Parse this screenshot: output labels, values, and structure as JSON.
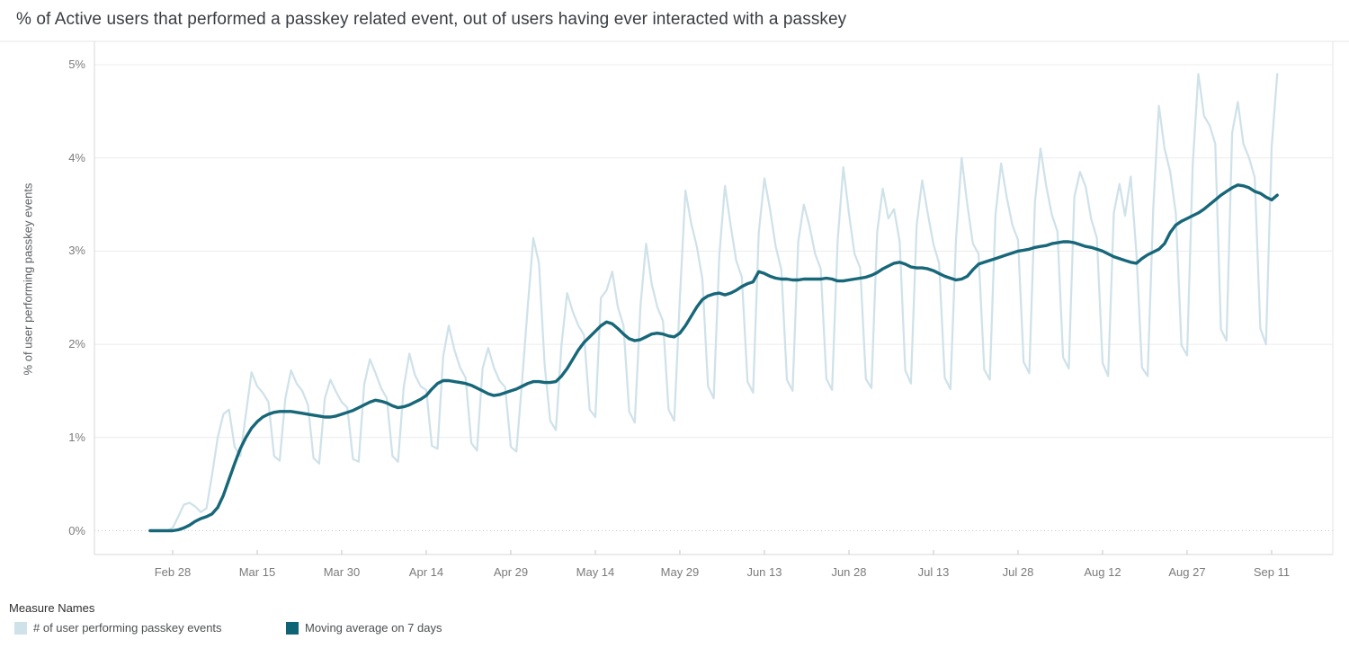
{
  "title": "% of Active users that performed a passkey related event, out of users having ever interacted with a passkey",
  "y_axis": {
    "title": "% of user performing passkey events",
    "ticks": [
      {
        "label": "0%",
        "value": 0
      },
      {
        "label": "1%",
        "value": 1
      },
      {
        "label": "2%",
        "value": 2
      },
      {
        "label": "3%",
        "value": 3
      },
      {
        "label": "4%",
        "value": 4
      },
      {
        "label": "5%",
        "value": 5
      }
    ]
  },
  "x_axis": {
    "ticks": [
      {
        "label": "Feb 28",
        "day": 4
      },
      {
        "label": "Mar 15",
        "day": 19
      },
      {
        "label": "Mar 30",
        "day": 34
      },
      {
        "label": "Apr 14",
        "day": 49
      },
      {
        "label": "Apr 29",
        "day": 64
      },
      {
        "label": "May 14",
        "day": 79
      },
      {
        "label": "May 29",
        "day": 94
      },
      {
        "label": "Jun 13",
        "day": 109
      },
      {
        "label": "Jun 28",
        "day": 124
      },
      {
        "label": "Jul 13",
        "day": 139
      },
      {
        "label": "Jul 28",
        "day": 154
      },
      {
        "label": "Aug 12",
        "day": 169
      },
      {
        "label": "Aug 27",
        "day": 184
      },
      {
        "label": "Sep 11",
        "day": 199
      }
    ]
  },
  "legend": {
    "title": "Measure Names",
    "items": [
      {
        "label": "# of user performing passkey events",
        "color": "#cfe2e9"
      },
      {
        "label": "Moving average on 7 days",
        "color": "#0e6374"
      }
    ]
  },
  "colors": {
    "daily_line": "#cfe2e9",
    "ma_line": "#176779",
    "gridline": "#ececec",
    "zero_line": "#c8c8c8",
    "axis_border": "#d7d7d7",
    "panel_border": "#e6e6e6",
    "tick_mark": "#c6c6c6"
  },
  "chart_data": {
    "type": "line",
    "title": "% of Active users that performed a passkey related event, out of users having ever interacted with a passkey",
    "ylabel": "% of user performing passkey events",
    "ylim": [
      0,
      5
    ],
    "grid": "horizontal",
    "legend_position": "bottom-left",
    "x_unit": "daily",
    "start_date": "Feb 24",
    "end_date": "Sep 12",
    "series": [
      {
        "id": "daily-series",
        "name": "# of user performing passkey events",
        "color": "#cfe2e9",
        "width": 2.25,
        "values": [
          0.0,
          0.0,
          0.0,
          0.0,
          0.03,
          0.15,
          0.28,
          0.3,
          0.26,
          0.2,
          0.24,
          0.6,
          1.0,
          1.25,
          1.3,
          0.9,
          0.8,
          1.25,
          1.7,
          1.55,
          1.48,
          1.38,
          0.8,
          0.75,
          1.42,
          1.72,
          1.58,
          1.5,
          1.35,
          0.78,
          0.72,
          1.42,
          1.62,
          1.49,
          1.38,
          1.32,
          0.77,
          0.74,
          1.57,
          1.84,
          1.69,
          1.53,
          1.42,
          0.8,
          0.74,
          1.54,
          1.9,
          1.67,
          1.55,
          1.51,
          0.91,
          0.88,
          1.87,
          2.2,
          1.94,
          1.75,
          1.64,
          0.94,
          0.86,
          1.74,
          1.96,
          1.75,
          1.61,
          1.54,
          0.9,
          0.85,
          1.6,
          2.4,
          3.14,
          2.87,
          1.78,
          1.18,
          1.08,
          2.0,
          2.55,
          2.35,
          2.2,
          2.1,
          1.3,
          1.22,
          2.5,
          2.58,
          2.78,
          2.4,
          2.2,
          1.28,
          1.16,
          2.4,
          3.08,
          2.65,
          2.4,
          2.25,
          1.3,
          1.18,
          2.5,
          3.65,
          3.3,
          3.05,
          2.7,
          1.55,
          1.42,
          2.95,
          3.7,
          3.28,
          2.9,
          2.72,
          1.6,
          1.48,
          3.2,
          3.78,
          3.45,
          3.05,
          2.8,
          1.62,
          1.5,
          3.1,
          3.5,
          3.27,
          2.97,
          2.81,
          1.63,
          1.51,
          3.11,
          3.9,
          3.4,
          2.97,
          2.82,
          1.63,
          1.53,
          3.2,
          3.67,
          3.35,
          3.45,
          3.1,
          1.72,
          1.58,
          3.27,
          3.76,
          3.4,
          3.07,
          2.87,
          1.64,
          1.52,
          3.12,
          4.0,
          3.5,
          3.08,
          2.97,
          1.73,
          1.62,
          3.39,
          3.94,
          3.58,
          3.28,
          3.12,
          1.81,
          1.69,
          3.53,
          4.1,
          3.7,
          3.39,
          3.21,
          1.86,
          1.74,
          3.58,
          3.85,
          3.69,
          3.34,
          3.14,
          1.8,
          1.66,
          3.41,
          3.72,
          3.38,
          3.8,
          2.98,
          1.75,
          1.66,
          3.47,
          4.56,
          4.1,
          3.85,
          3.41,
          1.99,
          1.88,
          3.92,
          4.9,
          4.45,
          4.35,
          4.15,
          2.16,
          2.04,
          4.27,
          4.6,
          4.15,
          4.0,
          3.79,
          2.17,
          2.0,
          4.12,
          4.9
        ]
      },
      {
        "id": "moving-average-series",
        "name": "Moving average on 7 days",
        "color": "#176779",
        "width": 3.4,
        "values": [
          0.0,
          0.0,
          0.0,
          0.0,
          0.0,
          0.01,
          0.03,
          0.06,
          0.1,
          0.13,
          0.15,
          0.18,
          0.25,
          0.38,
          0.55,
          0.72,
          0.88,
          1.0,
          1.1,
          1.17,
          1.22,
          1.25,
          1.27,
          1.28,
          1.28,
          1.28,
          1.27,
          1.26,
          1.25,
          1.24,
          1.23,
          1.22,
          1.22,
          1.23,
          1.25,
          1.27,
          1.29,
          1.32,
          1.35,
          1.38,
          1.4,
          1.39,
          1.37,
          1.34,
          1.32,
          1.33,
          1.35,
          1.38,
          1.41,
          1.45,
          1.52,
          1.58,
          1.61,
          1.61,
          1.6,
          1.59,
          1.58,
          1.56,
          1.53,
          1.5,
          1.47,
          1.45,
          1.46,
          1.48,
          1.5,
          1.52,
          1.55,
          1.58,
          1.6,
          1.6,
          1.59,
          1.59,
          1.6,
          1.66,
          1.74,
          1.84,
          1.94,
          2.02,
          2.08,
          2.14,
          2.2,
          2.24,
          2.22,
          2.17,
          2.11,
          2.06,
          2.04,
          2.05,
          2.08,
          2.11,
          2.12,
          2.11,
          2.09,
          2.08,
          2.12,
          2.2,
          2.3,
          2.4,
          2.48,
          2.52,
          2.54,
          2.55,
          2.53,
          2.55,
          2.58,
          2.62,
          2.65,
          2.67,
          2.78,
          2.76,
          2.73,
          2.71,
          2.7,
          2.7,
          2.69,
          2.69,
          2.7,
          2.7,
          2.7,
          2.7,
          2.71,
          2.7,
          2.68,
          2.68,
          2.69,
          2.7,
          2.71,
          2.72,
          2.74,
          2.77,
          2.81,
          2.84,
          2.87,
          2.88,
          2.86,
          2.83,
          2.82,
          2.82,
          2.81,
          2.79,
          2.76,
          2.73,
          2.71,
          2.69,
          2.7,
          2.73,
          2.8,
          2.86,
          2.88,
          2.9,
          2.92,
          2.94,
          2.96,
          2.98,
          3.0,
          3.01,
          3.02,
          3.04,
          3.05,
          3.06,
          3.08,
          3.09,
          3.1,
          3.1,
          3.09,
          3.07,
          3.05,
          3.04,
          3.02,
          3.0,
          2.97,
          2.94,
          2.92,
          2.9,
          2.88,
          2.87,
          2.92,
          2.96,
          2.99,
          3.02,
          3.08,
          3.2,
          3.28,
          3.32,
          3.35,
          3.38,
          3.41,
          3.45,
          3.5,
          3.55,
          3.6,
          3.64,
          3.68,
          3.71,
          3.7,
          3.68,
          3.64,
          3.62,
          3.58,
          3.55,
          3.6
        ]
      }
    ]
  }
}
